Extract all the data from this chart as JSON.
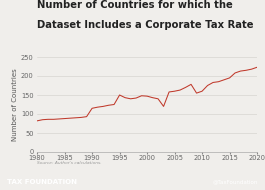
{
  "title_line1": "Number of Countries for which the",
  "title_line2": "Dataset Includes a Corporate Tax Rate",
  "ylabel": "Number of Countries",
  "years": [
    1980,
    1981,
    1982,
    1983,
    1984,
    1985,
    1986,
    1987,
    1988,
    1989,
    1990,
    1991,
    1992,
    1993,
    1994,
    1995,
    1996,
    1997,
    1998,
    1999,
    2000,
    2001,
    2002,
    2003,
    2004,
    2005,
    2006,
    2007,
    2008,
    2009,
    2010,
    2011,
    2012,
    2013,
    2014,
    2015,
    2016,
    2017,
    2018,
    2019,
    2020
  ],
  "values": [
    82,
    85,
    86,
    86,
    87,
    88,
    89,
    90,
    91,
    93,
    115,
    118,
    120,
    123,
    125,
    150,
    143,
    140,
    142,
    148,
    147,
    143,
    140,
    120,
    158,
    160,
    163,
    170,
    178,
    155,
    160,
    175,
    183,
    185,
    190,
    195,
    208,
    213,
    215,
    218,
    223
  ],
  "line_color": "#c0392b",
  "bg_color": "#f0eeeb",
  "plot_bg": "#f0eeeb",
  "footer_color": "#1a9fe0",
  "footer_text": "TAX FOUNDATION",
  "footer_right": "@TaxFoundation",
  "source_text": "Source: Author's calculations.",
  "title_fontsize": 7.2,
  "ylabel_fontsize": 5.0,
  "tick_fontsize": 4.8,
  "ylim": [
    0,
    250
  ],
  "xlim": [
    1980,
    2020
  ],
  "yticks": [
    0,
    50,
    100,
    150,
    200,
    250
  ],
  "xticks": [
    1980,
    1985,
    1990,
    1995,
    2000,
    2005,
    2010,
    2015,
    2020
  ]
}
